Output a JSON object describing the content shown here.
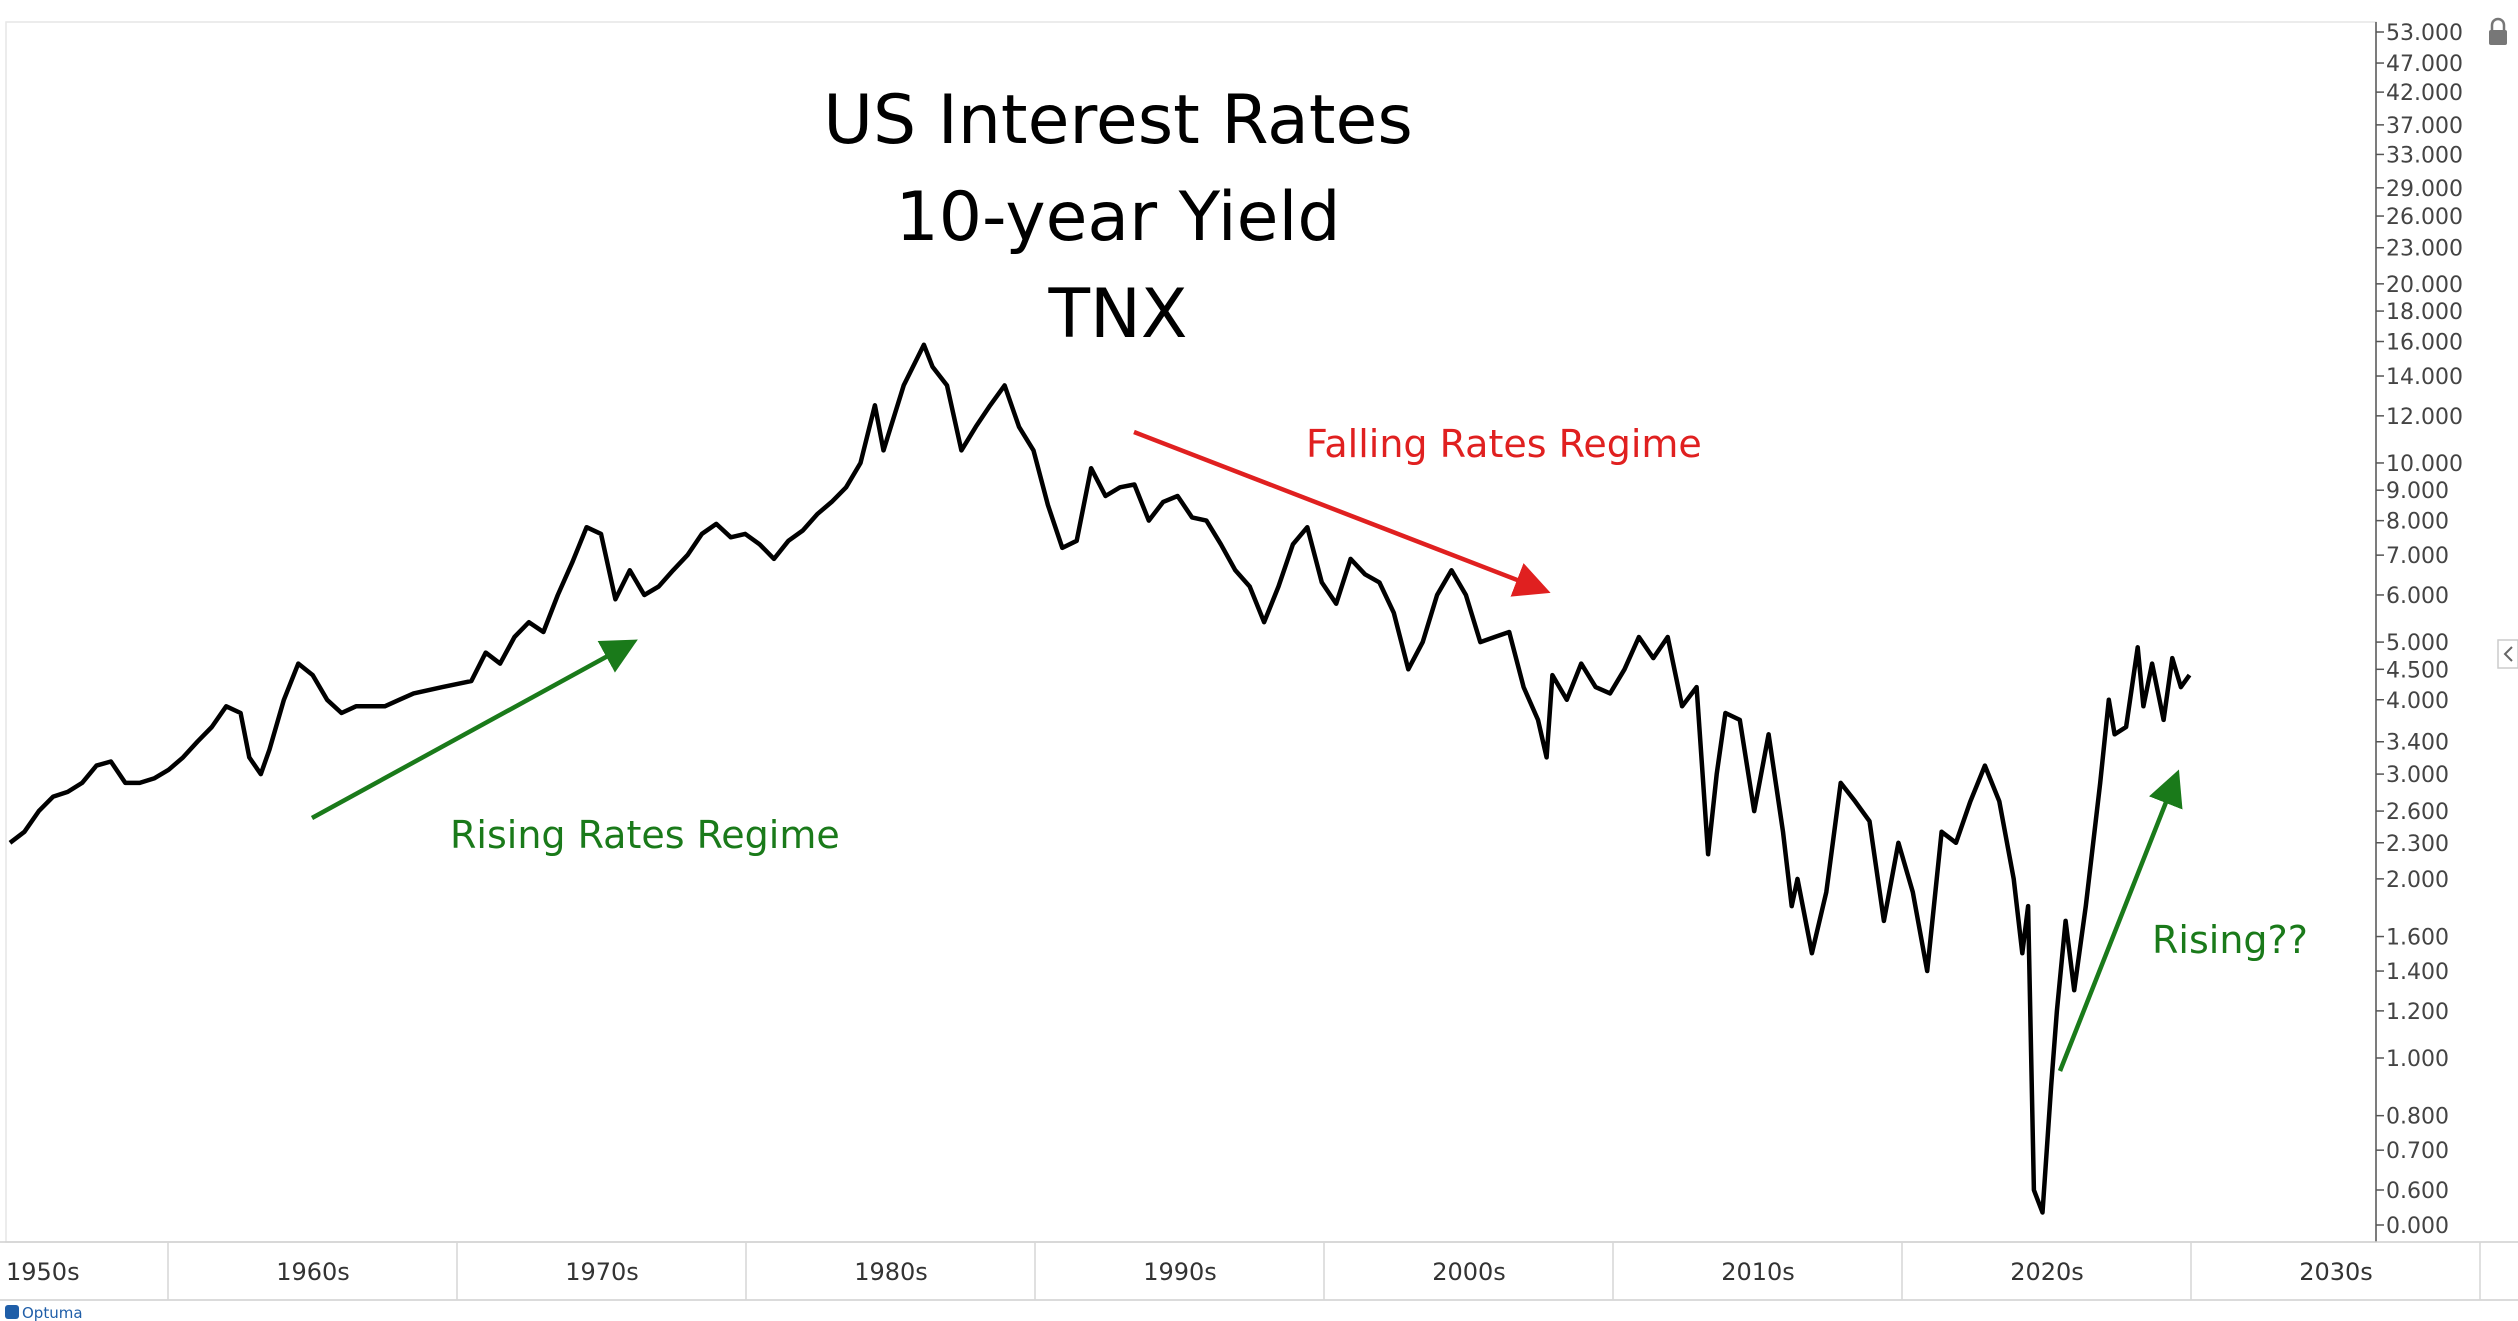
{
  "chart_data": {
    "type": "line",
    "title": [
      "US Interest Rates",
      "10-year Yield",
      "TNX"
    ],
    "y_scale": "log",
    "y_ticks": [
      53,
      47,
      42,
      37,
      33,
      29,
      26,
      23,
      20,
      18,
      16,
      14,
      12,
      10,
      9,
      8,
      7,
      6,
      5,
      4.5,
      4,
      3.4,
      3,
      2.6,
      2.3,
      2,
      1.6,
      1.4,
      1.2,
      1,
      0.8,
      0.7,
      0.6,
      0
    ],
    "y_tick_labels": [
      "53.000",
      "47.000",
      "42.000",
      "37.000",
      "33.000",
      "29.000",
      "26.000",
      "23.000",
      "20.000",
      "18.000",
      "16.000",
      "14.000",
      "12.000",
      "10.000",
      "9.000",
      "8.000",
      "7.000",
      "6.000",
      "5.000",
      "4.500",
      "4.000",
      "3.400",
      "3.000",
      "2.600",
      "2.300",
      "2.000",
      "1.600",
      "1.400",
      "1.200",
      "1.000",
      "0.800",
      "0.700",
      "0.600",
      "0.000"
    ],
    "x_categories": [
      "1950s",
      "1960s",
      "1970s",
      "1980s",
      "1990s",
      "2000s",
      "2010s",
      "2020s",
      "2030s"
    ],
    "xlim": [
      1950,
      2040
    ],
    "series": [
      {
        "values": [
          [
            1950.0,
            2.3
          ],
          [
            1950.5,
            2.4
          ],
          [
            1951.0,
            2.6
          ],
          [
            1951.5,
            2.75
          ],
          [
            1952.0,
            2.8
          ],
          [
            1952.5,
            2.9
          ],
          [
            1953.0,
            3.1
          ],
          [
            1953.5,
            3.15
          ],
          [
            1954.0,
            2.9
          ],
          [
            1954.5,
            2.9
          ],
          [
            1955.0,
            2.95
          ],
          [
            1955.5,
            3.05
          ],
          [
            1956.0,
            3.2
          ],
          [
            1956.5,
            3.4
          ],
          [
            1957.0,
            3.6
          ],
          [
            1957.5,
            3.9
          ],
          [
            1958.0,
            3.8
          ],
          [
            1958.3,
            3.2
          ],
          [
            1958.7,
            3.0
          ],
          [
            1959.0,
            3.3
          ],
          [
            1959.5,
            4.0
          ],
          [
            1960.0,
            4.6
          ],
          [
            1960.5,
            4.4
          ],
          [
            1961.0,
            4.0
          ],
          [
            1961.5,
            3.8
          ],
          [
            1962.0,
            3.9
          ],
          [
            1962.5,
            3.9
          ],
          [
            1963.0,
            3.9
          ],
          [
            1963.5,
            4.0
          ],
          [
            1964.0,
            4.1
          ],
          [
            1965.0,
            4.2
          ],
          [
            1966.0,
            4.3
          ],
          [
            1966.5,
            4.8
          ],
          [
            1967.0,
            4.6
          ],
          [
            1967.5,
            5.1
          ],
          [
            1968.0,
            5.4
          ],
          [
            1968.5,
            5.2
          ],
          [
            1969.0,
            6.0
          ],
          [
            1969.5,
            6.8
          ],
          [
            1970.0,
            7.8
          ],
          [
            1970.5,
            7.6
          ],
          [
            1971.0,
            5.9
          ],
          [
            1971.5,
            6.6
          ],
          [
            1972.0,
            6.0
          ],
          [
            1972.5,
            6.2
          ],
          [
            1973.0,
            6.6
          ],
          [
            1973.5,
            7.0
          ],
          [
            1974.0,
            7.6
          ],
          [
            1974.5,
            7.9
          ],
          [
            1975.0,
            7.5
          ],
          [
            1975.5,
            7.6
          ],
          [
            1976.0,
            7.3
          ],
          [
            1976.5,
            6.9
          ],
          [
            1977.0,
            7.4
          ],
          [
            1977.5,
            7.7
          ],
          [
            1978.0,
            8.2
          ],
          [
            1978.5,
            8.6
          ],
          [
            1979.0,
            9.1
          ],
          [
            1979.5,
            10.0
          ],
          [
            1980.0,
            12.5
          ],
          [
            1980.3,
            10.5
          ],
          [
            1981.0,
            13.5
          ],
          [
            1981.7,
            15.8
          ],
          [
            1982.0,
            14.5
          ],
          [
            1982.5,
            13.5
          ],
          [
            1983.0,
            10.5
          ],
          [
            1983.5,
            11.5
          ],
          [
            1984.0,
            12.5
          ],
          [
            1984.5,
            13.5
          ],
          [
            1985.0,
            11.5
          ],
          [
            1985.5,
            10.5
          ],
          [
            1986.0,
            8.5
          ],
          [
            1986.5,
            7.2
          ],
          [
            1987.0,
            7.4
          ],
          [
            1987.5,
            9.8
          ],
          [
            1988.0,
            8.8
          ],
          [
            1988.5,
            9.1
          ],
          [
            1989.0,
            9.2
          ],
          [
            1989.5,
            8.0
          ],
          [
            1990.0,
            8.6
          ],
          [
            1990.5,
            8.8
          ],
          [
            1991.0,
            8.1
          ],
          [
            1991.5,
            8.0
          ],
          [
            1992.0,
            7.3
          ],
          [
            1992.5,
            6.6
          ],
          [
            1993.0,
            6.2
          ],
          [
            1993.5,
            5.4
          ],
          [
            1994.0,
            6.2
          ],
          [
            1994.5,
            7.3
          ],
          [
            1995.0,
            7.8
          ],
          [
            1995.5,
            6.3
          ],
          [
            1996.0,
            5.8
          ],
          [
            1996.5,
            6.9
          ],
          [
            1997.0,
            6.5
          ],
          [
            1997.5,
            6.3
          ],
          [
            1998.0,
            5.6
          ],
          [
            1998.5,
            4.5
          ],
          [
            1999.0,
            5.0
          ],
          [
            1999.5,
            6.0
          ],
          [
            2000.0,
            6.6
          ],
          [
            2000.5,
            6.0
          ],
          [
            2001.0,
            5.0
          ],
          [
            2001.5,
            5.1
          ],
          [
            2002.0,
            5.2
          ],
          [
            2002.5,
            4.2
          ],
          [
            2003.0,
            3.7
          ],
          [
            2003.3,
            3.2
          ],
          [
            2003.5,
            4.4
          ],
          [
            2004.0,
            4.0
          ],
          [
            2004.5,
            4.6
          ],
          [
            2005.0,
            4.2
          ],
          [
            2005.5,
            4.1
          ],
          [
            2006.0,
            4.5
          ],
          [
            2006.5,
            5.1
          ],
          [
            2007.0,
            4.7
          ],
          [
            2007.5,
            5.1
          ],
          [
            2008.0,
            3.9
          ],
          [
            2008.5,
            4.2
          ],
          [
            2008.9,
            2.2
          ],
          [
            2009.2,
            3.0
          ],
          [
            2009.5,
            3.8
          ],
          [
            2010.0,
            3.7
          ],
          [
            2010.5,
            2.6
          ],
          [
            2011.0,
            3.5
          ],
          [
            2011.5,
            2.4
          ],
          [
            2011.8,
            1.8
          ],
          [
            2012.0,
            2.0
          ],
          [
            2012.5,
            1.5
          ],
          [
            2013.0,
            1.9
          ],
          [
            2013.5,
            2.9
          ],
          [
            2014.0,
            2.7
          ],
          [
            2014.5,
            2.5
          ],
          [
            2015.0,
            1.7
          ],
          [
            2015.5,
            2.3
          ],
          [
            2016.0,
            1.9
          ],
          [
            2016.5,
            1.4
          ],
          [
            2017.0,
            2.4
          ],
          [
            2017.5,
            2.3
          ],
          [
            2018.0,
            2.7
          ],
          [
            2018.5,
            3.1
          ],
          [
            2019.0,
            2.7
          ],
          [
            2019.5,
            2.0
          ],
          [
            2019.8,
            1.5
          ],
          [
            2020.0,
            1.8
          ],
          [
            2020.2,
            0.6
          ],
          [
            2020.5,
            0.55
          ],
          [
            2020.8,
            0.9
          ],
          [
            2021.0,
            1.2
          ],
          [
            2021.3,
            1.7
          ],
          [
            2021.6,
            1.3
          ],
          [
            2022.0,
            1.8
          ],
          [
            2022.5,
            2.9
          ],
          [
            2022.8,
            4.0
          ],
          [
            2023.0,
            3.5
          ],
          [
            2023.4,
            3.6
          ],
          [
            2023.8,
            4.9
          ],
          [
            2024.0,
            3.9
          ],
          [
            2024.3,
            4.6
          ],
          [
            2024.7,
            3.7
          ],
          [
            2025.0,
            4.7
          ],
          [
            2025.3,
            4.2
          ],
          [
            2025.6,
            4.4
          ]
        ]
      }
    ],
    "annotations": [
      {
        "text": "Rising Rates Regime",
        "color": "#1a7a1a"
      },
      {
        "text": "Falling Rates Regime",
        "color": "#e02020"
      },
      {
        "text": "Rising??",
        "color": "#1a7a1a"
      }
    ],
    "brand": "Optuma"
  }
}
